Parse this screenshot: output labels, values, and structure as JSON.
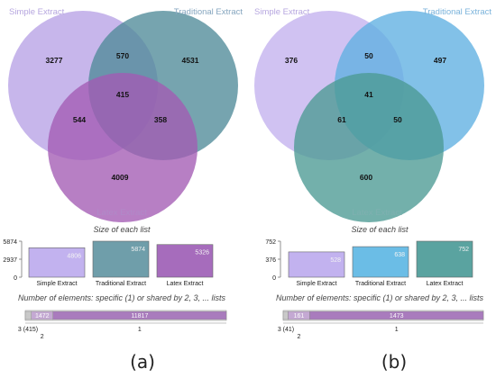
{
  "colors": {
    "left_venn_simple": "#b7a2e6",
    "left_venn_traditional": "#4f8a99",
    "left_venn_latex": "#a35bb4",
    "right_venn_simple": "#c3b1ee",
    "right_venn_traditional": "#5fb0e2",
    "right_venn_latex": "#4c9a93",
    "label_simple": "#b6a6df",
    "label_traditional": "#86a6bf",
    "label_latex": "#b08ac8",
    "label_right_traditional": "#7bb3db",
    "label_right_latex": "#7fb0b0",
    "bar_simple": "#c2b2ef",
    "bar_traditional": "#6f9eaa",
    "bar_latex": "#a66cbc",
    "bar_right_traditional": "#6bbde6",
    "bar_right_latex": "#5aa3a0",
    "strip": "#a97bbd",
    "strip_right": "#a97bbd"
  },
  "chart_data": [
    {
      "panel_label": "(a)",
      "type": "venn",
      "sets": [
        "Simple Extract",
        "Traditional Extract",
        "Latex Extract"
      ],
      "regions": {
        "simple_only": 3277,
        "traditional_only": 4531,
        "latex_only": 4009,
        "simple_traditional": 570,
        "simple_latex": 544,
        "traditional_latex": 358,
        "all": 415
      },
      "bar_title": "Size of each list",
      "bar_categories": [
        "Simple Extract",
        "Traditional Extract",
        "Latex Extract"
      ],
      "bar_values": [
        4806,
        5874,
        5326
      ],
      "bar_ticks": [
        0,
        2937,
        5874
      ],
      "strip_title": "Number of elements: specific (1) or shared by 2, 3, ... lists",
      "strip_segments": [
        {
          "value": 415,
          "label": ""
        },
        {
          "value": 1472,
          "label": "1472"
        },
        {
          "value": 11817,
          "label": "11817"
        }
      ],
      "strip_axis": [
        {
          "text": "3 (415)",
          "row": 1
        },
        {
          "text": "2",
          "row": 2
        },
        {
          "text": "1",
          "row": 1
        }
      ]
    },
    {
      "panel_label": "(b)",
      "type": "venn",
      "sets": [
        "Simple Extract",
        "Traditional Extract",
        "Latex Extract"
      ],
      "regions": {
        "simple_only": 376,
        "traditional_only": 497,
        "latex_only": 600,
        "simple_traditional": 50,
        "simple_latex": 61,
        "traditional_latex": 50,
        "all": 41
      },
      "bar_title": "Size of each list",
      "bar_categories": [
        "Simple Extract",
        "Traditional Extract",
        "Latex Extract"
      ],
      "bar_values": [
        528,
        638,
        752
      ],
      "bar_ticks": [
        0,
        376,
        752
      ],
      "strip_title": "Number of elements: specific (1) or shared by 2, 3, ... lists",
      "strip_segments": [
        {
          "value": 41,
          "label": ""
        },
        {
          "value": 161,
          "label": "161"
        },
        {
          "value": 1473,
          "label": "1473"
        }
      ],
      "strip_axis": [
        {
          "text": "3 (41)",
          "row": 1
        },
        {
          "text": "2",
          "row": 2
        },
        {
          "text": "1",
          "row": 1
        }
      ]
    }
  ]
}
